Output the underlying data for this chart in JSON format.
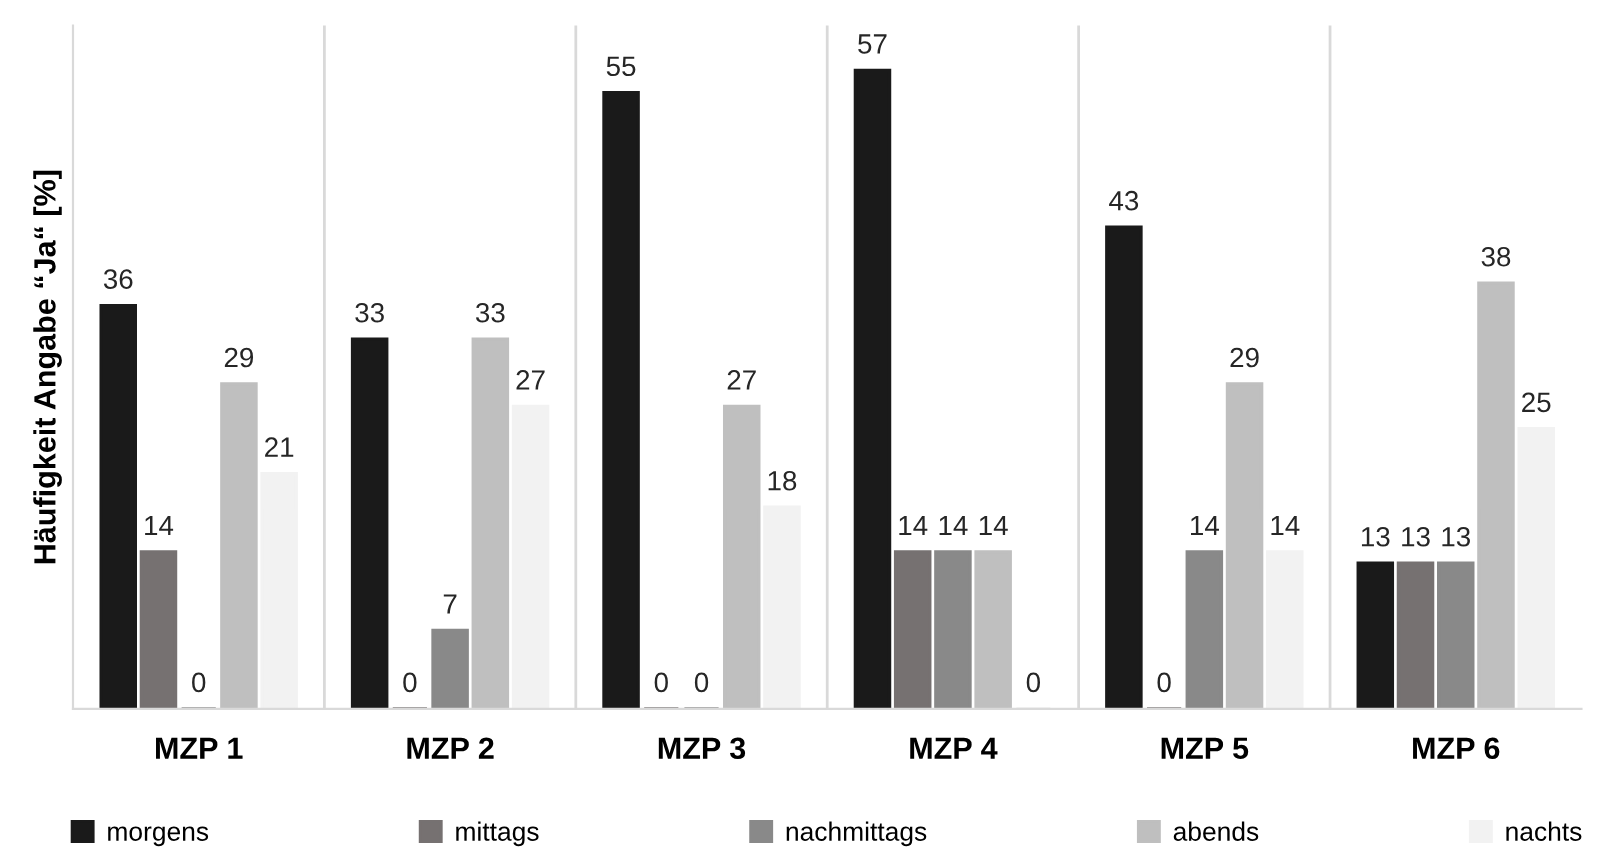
{
  "chart_data": {
    "type": "bar",
    "ylabel": "Häufigkeit Angabe “Ja“ [%]",
    "categories": [
      "MZP 1",
      "MZP 2",
      "MZP 3",
      "MZP 4",
      "MZP 5",
      "MZP 6"
    ],
    "series": [
      {
        "name": "morgens",
        "color": "#1a1a1a",
        "values": [
          36,
          33,
          55,
          57,
          43,
          13
        ]
      },
      {
        "name": "mittags",
        "color": "#767171",
        "values": [
          14,
          0,
          0,
          14,
          0,
          13
        ]
      },
      {
        "name": "nachmittags",
        "color": "#898989",
        "values": [
          0,
          7,
          0,
          14,
          14,
          13
        ]
      },
      {
        "name": "abends",
        "color": "#bfbfbf",
        "values": [
          29,
          33,
          27,
          14,
          29,
          38
        ]
      },
      {
        "name": "nachts",
        "color": "#f2f2f2",
        "values": [
          21,
          27,
          18,
          0,
          14,
          25
        ]
      }
    ],
    "data_labels": true,
    "grid": "x",
    "legend": "bottom"
  }
}
